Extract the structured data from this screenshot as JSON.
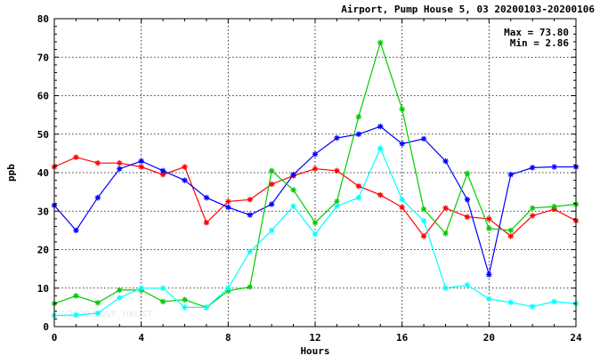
{
  "chart_data": {
    "type": "line",
    "title": "Airport, Pump House 5, 03 20200103-20200106",
    "xlabel": "Hours",
    "ylabel": "ppb",
    "xlim": [
      0,
      24
    ],
    "ylim": [
      0,
      80
    ],
    "xticks": [
      "0",
      "4",
      "8",
      "12",
      "16",
      "20",
      "24"
    ],
    "yticks": [
      "0",
      "10",
      "20",
      "30",
      "40",
      "50",
      "60",
      "70",
      "80"
    ],
    "grid": true,
    "stats": {
      "max_label": "Max = 73.80",
      "min_label": "Min =  2.86"
    },
    "watermark": "©2020 KNVF, HKUST",
    "x": [
      0,
      1,
      2,
      3,
      4,
      5,
      6,
      7,
      8,
      9,
      10,
      11,
      12,
      13,
      14,
      15,
      16,
      17,
      18,
      19,
      20,
      21,
      22,
      23,
      24
    ],
    "series": [
      {
        "color": "#ff0000",
        "values": [
          41.5,
          44,
          42.5,
          42.5,
          41.5,
          39.5,
          41.5,
          27,
          32.5,
          33,
          37,
          39.2,
          41,
          40.5,
          36.5,
          34.2,
          31,
          23.5,
          30.8,
          28.5,
          28,
          23.5,
          28.8,
          30.5,
          27.5
        ]
      },
      {
        "color": "#0000ff",
        "values": [
          31.5,
          25,
          33.5,
          41,
          43,
          40.5,
          38,
          33.5,
          31,
          29,
          31.8,
          39.5,
          44.8,
          49,
          50,
          52,
          47.5,
          48.8,
          43,
          33,
          13.5,
          39.5,
          41.3,
          41.5,
          41.5
        ]
      },
      {
        "color": "#00cc00",
        "values": [
          6,
          8,
          6.2,
          9.5,
          9.5,
          6.5,
          7,
          5,
          9.3,
          10.3,
          40.5,
          35.5,
          27,
          32.5,
          54.5,
          73.8,
          56.5,
          30.5,
          24.2,
          39.8,
          25.5,
          25,
          30.8,
          31.2,
          31.8
        ]
      },
      {
        "color": "#00ffff",
        "values": [
          2.9,
          3,
          3.5,
          7.5,
          10,
          10,
          5,
          5,
          10,
          19.5,
          25,
          31.3,
          24,
          31.3,
          33.5,
          46.3,
          33,
          27.5,
          10,
          10.8,
          7.2,
          6.3,
          5.2,
          6.5,
          6
        ]
      }
    ]
  }
}
